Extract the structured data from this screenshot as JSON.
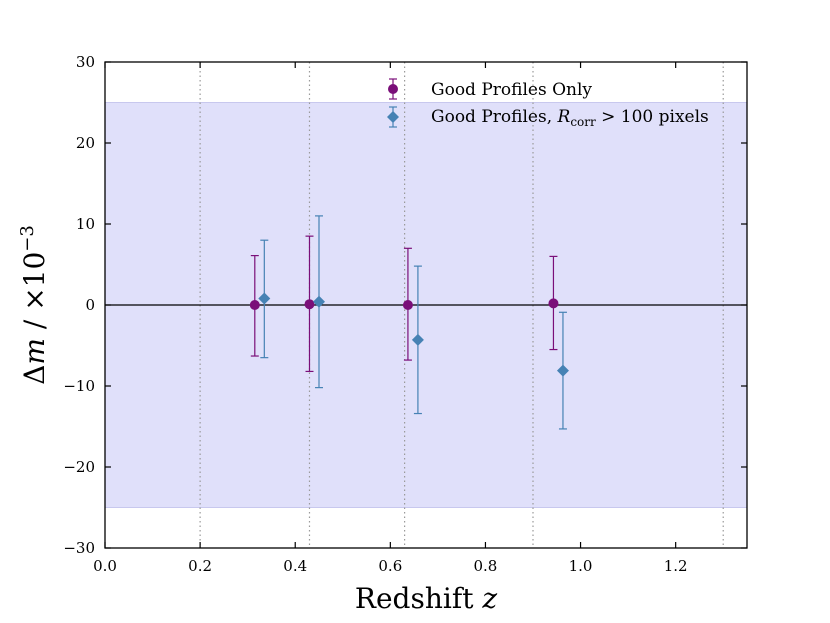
{
  "chart_data": {
    "type": "scatter",
    "xlabel": "Redshift z",
    "ylabel": "Δm / ×10⁻³",
    "xlim": [
      0.0,
      1.35
    ],
    "ylim": [
      -30,
      30
    ],
    "x_ticks": [
      0.0,
      0.2,
      0.4,
      0.6,
      0.8,
      1.0,
      1.2
    ],
    "x_tick_labels": [
      "0.0",
      "0.2",
      "0.4",
      "0.6",
      "0.8",
      "1.0",
      "1.2"
    ],
    "y_ticks": [
      -30,
      -20,
      -10,
      0,
      10,
      20,
      30
    ],
    "y_tick_labels": [
      "−30",
      "−20",
      "−10",
      "0",
      "10",
      "20",
      "30"
    ],
    "shaded_band": {
      "ymin": -25,
      "ymax": 25,
      "color": "#e0e0fa"
    },
    "zero_line": 0,
    "bin_edges": [
      0.2,
      0.43,
      0.63,
      0.9,
      1.3
    ],
    "legend_position": "top-right",
    "series": [
      {
        "name": "Good Profiles Only",
        "marker": "circle",
        "color": "#7a0f79",
        "x": [
          0.315,
          0.43,
          0.637,
          0.943
        ],
        "y": [
          0.0,
          0.1,
          0.0,
          0.2
        ],
        "err_low": [
          6.3,
          8.3,
          6.8,
          5.7
        ],
        "err_high": [
          6.1,
          8.4,
          7.0,
          5.8
        ]
      },
      {
        "name": "Good Profiles, R_corr > 100 pixels",
        "marker": "diamond",
        "color": "#4682b4",
        "x": [
          0.335,
          0.45,
          0.658,
          0.963
        ],
        "y": [
          0.8,
          0.4,
          -4.3,
          -8.1
        ],
        "err_low": [
          7.3,
          10.6,
          9.1,
          7.2
        ],
        "err_high": [
          7.2,
          10.6,
          9.1,
          7.2
        ]
      }
    ]
  },
  "legend_labels": {
    "s1": "Good Profiles Only",
    "s2_prefix": "Good Profiles, ",
    "s2_r": "R",
    "s2_sub": "corr",
    "s2_suffix": " > 100 pixels"
  },
  "axis_text": {
    "x_main": "Redshift ",
    "x_var": "z",
    "y_delta": "Δ",
    "y_m": "m",
    "y_rest": " / ×10",
    "y_exp": "−3"
  }
}
